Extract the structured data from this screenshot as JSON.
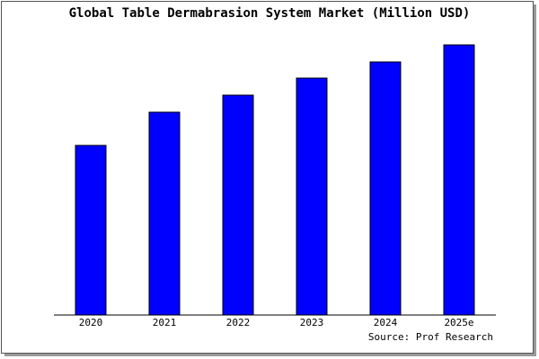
{
  "chart_data": {
    "type": "bar",
    "title": "Global Table Dermabrasion System Market (Million USD)",
    "categories": [
      "2020",
      "2021",
      "2022",
      "2023",
      "2024",
      "2025e"
    ],
    "values": [
      189,
      226,
      245,
      264,
      282,
      301
    ],
    "color": "#0000ff",
    "ylim": [
      0,
      303
    ],
    "source": "Source: Prof Research"
  }
}
